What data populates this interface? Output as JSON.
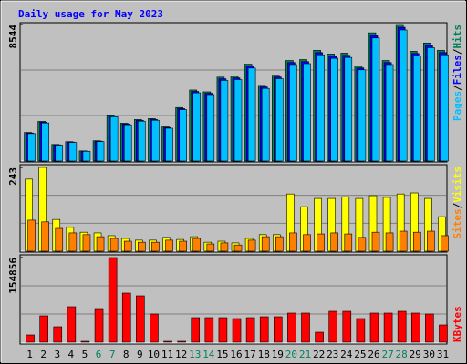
{
  "chart_data": [
    {
      "type": "bar",
      "title": "Daily usage for May 2023",
      "separator": "/",
      "ylim": [
        0,
        8544
      ],
      "yticks": [
        8544
      ],
      "series": [
        {
          "name": "Hits",
          "color": "#00805c",
          "values": [
            1790,
            2482,
            1039,
            1212,
            635,
            1270,
            2886,
            2367,
            2598,
            2656,
            2136,
            3348,
            4445,
            4330,
            5253,
            5311,
            6062,
            4734,
            5369,
            6292,
            6350,
            6928,
            6697,
            6754,
            5946,
            8024,
            6292,
            8544,
            6870,
            7389,
            6928
          ]
        },
        {
          "name": "Files",
          "color": "#0000ff",
          "values": [
            1754,
            2432,
            1018,
            1188,
            622,
            1245,
            2828,
            2320,
            2546,
            2603,
            2093,
            3281,
            4356,
            4243,
            5148,
            5205,
            5941,
            4639,
            5262,
            6166,
            6223,
            6789,
            6563,
            6619,
            5827,
            7864,
            6166,
            8373,
            6733,
            7241,
            6789
          ]
        },
        {
          "name": "Pages",
          "color": "#00c0ff",
          "values": [
            1718,
            2383,
            997,
            1164,
            610,
            1219,
            2771,
            2272,
            2494,
            2550,
            2051,
            3214,
            4267,
            4157,
            5043,
            5099,
            5820,
            4545,
            5154,
            6040,
            6096,
            6651,
            6429,
            6484,
            5708,
            7703,
            6040,
            8202,
            6595,
            7093,
            6651
          ]
        }
      ]
    },
    {
      "type": "bar",
      "separator": "/",
      "ylim": [
        0,
        243
      ],
      "yticks": [
        243
      ],
      "series": [
        {
          "name": "Visits",
          "color": "#ffff00",
          "values": [
            209,
            243,
            92,
            69,
            55,
            53,
            45,
            37,
            32,
            32,
            40,
            34,
            42,
            26,
            29,
            24,
            37,
            48,
            48,
            166,
            129,
            153,
            153,
            158,
            153,
            161,
            156,
            166,
            169,
            153,
            100
          ]
        },
        {
          "name": "Sites",
          "color": "#ff8000",
          "values": [
            90,
            85,
            66,
            53,
            48,
            42,
            37,
            29,
            26,
            26,
            32,
            29,
            37,
            21,
            24,
            18,
            32,
            42,
            42,
            53,
            48,
            50,
            53,
            50,
            40,
            55,
            53,
            58,
            55,
            58,
            45
          ]
        }
      ]
    },
    {
      "type": "bar",
      "ylim": [
        0,
        154856
      ],
      "yticks": [
        154856
      ],
      "categories": [
        "1",
        "2",
        "3",
        "4",
        "5",
        "6",
        "7",
        "8",
        "9",
        "10",
        "11",
        "12",
        "13",
        "14",
        "15",
        "16",
        "17",
        "18",
        "19",
        "20",
        "21",
        "22",
        "23",
        "24",
        "25",
        "26",
        "27",
        "28",
        "29",
        "30",
        "31"
      ],
      "category_colors": [
        "#000000",
        "#000000",
        "#000000",
        "#000000",
        "#000000",
        "#00805c",
        "#00805c",
        "#000000",
        "#000000",
        "#000000",
        "#000000",
        "#000000",
        "#00805c",
        "#00805c",
        "#000000",
        "#000000",
        "#000000",
        "#000000",
        "#000000",
        "#00805c",
        "#00805c",
        "#000000",
        "#000000",
        "#000000",
        "#000000",
        "#000000",
        "#00805c",
        "#00805c",
        "#000000",
        "#000000",
        "#000000"
      ],
      "series": [
        {
          "name": "KBytes",
          "color": "#ff0000",
          "values": [
            13321,
            48289,
            28307,
            64941,
            1665,
            59945,
            154856,
            89917,
            84922,
            51620,
            1665,
            1665,
            44959,
            44959,
            44959,
            43294,
            44959,
            46624,
            46624,
            53284,
            53284,
            18317,
            56614,
            56614,
            43294,
            53284,
            53284,
            56614,
            53284,
            51620,
            31637
          ]
        }
      ]
    }
  ]
}
